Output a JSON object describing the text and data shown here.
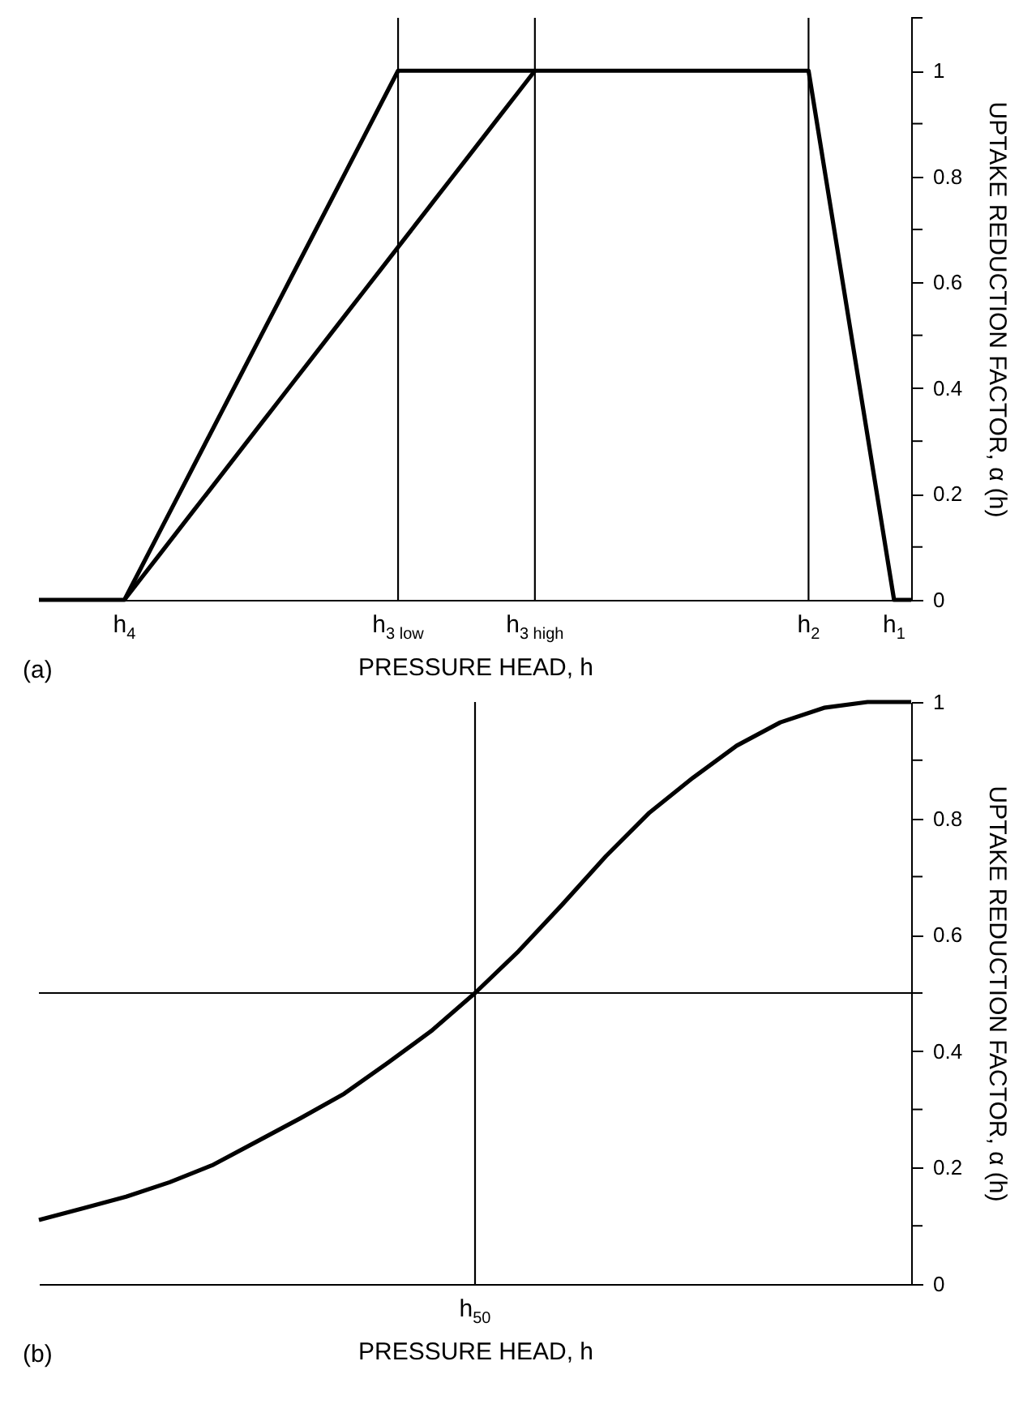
{
  "chart_data": [
    {
      "type": "line",
      "xlabel": "PRESSURE HEAD, h",
      "ylabel": "UPTAKE REDUCTION FACTOR, α (h)",
      "annotations": [
        "(a)"
      ],
      "categories": [
        null,
        null,
        null,
        null,
        null,
        "h$_{4}$",
        null,
        null,
        null,
        null,
        null,
        null,
        null,
        null,
        null,
        null,
        null,
        null,
        null,
        null,
        null,
        "h$_{3 low}$",
        null,
        null,
        null,
        null,
        null,
        null,
        null,
        "h$_{3 high}$",
        null,
        null,
        null,
        null,
        null,
        null,
        null,
        null,
        null,
        null,
        null,
        null,
        null,
        null,
        null,
        "h$_{2}$",
        null,
        null,
        null,
        null,
        "h$_{1}$",
        null
      ],
      "ylim": [
        0,
        1.1
      ],
      "yticks": [
        0,
        {
          "value": 0.1,
          "label": null
        },
        0.2,
        {
          "value": 0.3,
          "label": null
        },
        0.4,
        {
          "value": 0.5,
          "label": null
        },
        0.6,
        {
          "value": 0.7,
          "label": null
        },
        0.8,
        {
          "value": 0.9,
          "label": null
        },
        1,
        {
          "value": 1.1,
          "label": null
        }
      ],
      "series": [
        {
          "color": "#000000",
          "values": [
            0,
            0,
            0,
            0,
            0,
            0,
            0.0625,
            0.125,
            0.1875,
            0.25,
            0.3125,
            0.375,
            0.4375,
            0.5,
            0.5625,
            0.625,
            0.6875,
            0.75,
            0.8125,
            0.875,
            0.9375,
            1,
            1,
            1,
            1,
            1,
            1,
            1,
            1,
            1,
            1,
            1,
            1,
            1,
            1,
            1,
            1,
            1,
            1,
            1,
            1,
            1,
            1,
            1,
            1,
            1,
            0.8,
            0.6,
            0.4,
            0.2,
            0,
            0
          ]
        },
        {
          "color": "#000000",
          "values": [
            null,
            null,
            null,
            null,
            null,
            0,
            0.0417,
            0.0833,
            0.125,
            0.1667,
            0.2083,
            0.25,
            0.2917,
            0.3333,
            0.375,
            0.4167,
            0.4583,
            0.5,
            0.5417,
            0.5833,
            0.625,
            0.6667,
            0.7083,
            0.75,
            0.7917,
            0.8333,
            0.875,
            0.9167,
            0.9583,
            1,
            null,
            null,
            null,
            null,
            null,
            null,
            null,
            null,
            null,
            null,
            null,
            null,
            null,
            null,
            null,
            null,
            null,
            null,
            null,
            null,
            null,
            null
          ]
        }
      ],
      "ref_lines": [
        {
          "axis": "x",
          "value": "h$_{3 low}$",
          "label": null,
          "color": "#000000"
        },
        {
          "axis": "x",
          "value": "h$_{3 high}$",
          "label": null,
          "color": "#000000"
        },
        {
          "axis": "x",
          "value": "h$_{2}$",
          "label": null,
          "color": "#000000"
        }
      ]
    },
    {
      "type": "line",
      "xlabel": "PRESSURE HEAD, h",
      "ylabel": "UPTAKE REDUCTION FACTOR, α (h)",
      "annotations": [
        "(b)"
      ],
      "categories": [
        null,
        null,
        null,
        null,
        null,
        null,
        null,
        null,
        null,
        null,
        "h$_{50}$",
        null,
        null,
        null,
        null,
        null,
        null,
        null,
        null,
        null,
        null
      ],
      "ylim": [
        0,
        1
      ],
      "yticks": [
        0,
        {
          "value": 0.1,
          "label": null
        },
        0.2,
        {
          "value": 0.3,
          "label": null
        },
        0.4,
        {
          "value": 0.5,
          "label": null
        },
        0.6,
        {
          "value": 0.7,
          "label": null
        },
        0.8,
        {
          "value": 0.9,
          "label": null
        },
        1
      ],
      "series": [
        {
          "color": "#000000",
          "values": [
            0.11,
            0.13,
            0.15,
            0.175,
            0.205,
            0.245,
            0.285,
            0.327,
            0.38,
            0.435,
            0.5,
            0.572,
            0.652,
            0.735,
            0.81,
            0.87,
            0.925,
            0.965,
            0.99,
            1,
            1
          ]
        }
      ],
      "ref_lines": [
        {
          "axis": "x",
          "value": "h$_{50}$",
          "label": null,
          "color": "#000000"
        },
        {
          "axis": "y",
          "value": 0.5,
          "label": null,
          "color": "#000000"
        }
      ]
    }
  ]
}
